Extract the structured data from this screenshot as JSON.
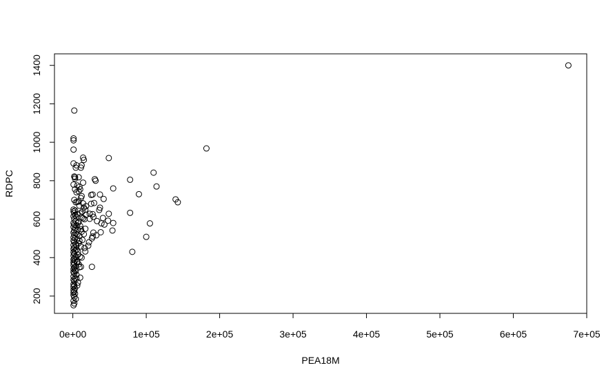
{
  "chart_data": {
    "type": "scatter",
    "title": "",
    "xlabel": "PEA18M",
    "ylabel": "RDPC",
    "xlim": [
      -25000,
      700000
    ],
    "ylim": [
      110,
      1460
    ],
    "xticks": [
      0,
      100000,
      200000,
      300000,
      400000,
      500000,
      600000,
      700000
    ],
    "xtick_labels": [
      "0e+00",
      "1e+05",
      "2e+05",
      "3e+05",
      "4e+05",
      "5e+05",
      "6e+05",
      "7e+05"
    ],
    "yticks": [
      200,
      400,
      600,
      800,
      1000,
      1200,
      1400
    ],
    "ytick_labels": [
      "200",
      "400",
      "600",
      "800",
      "1000",
      "1200",
      "1400"
    ],
    "grid": false,
    "legend": "none",
    "marker": "open-circle",
    "points": [
      [
        675000,
        1400
      ],
      [
        182000,
        968
      ],
      [
        110000,
        842
      ],
      [
        114000,
        770
      ],
      [
        90000,
        730
      ],
      [
        78000,
        805
      ],
      [
        140000,
        703
      ],
      [
        143000,
        688
      ],
      [
        78000,
        633
      ],
      [
        105000,
        578
      ],
      [
        100000,
        508
      ],
      [
        81000,
        430
      ],
      [
        49000,
        918
      ],
      [
        55000,
        760
      ],
      [
        31000,
        800
      ],
      [
        30000,
        808
      ],
      [
        37000,
        728
      ],
      [
        42000,
        705
      ],
      [
        27000,
        728
      ],
      [
        25000,
        726
      ],
      [
        29000,
        684
      ],
      [
        25000,
        680
      ],
      [
        37000,
        660
      ],
      [
        36000,
        648
      ],
      [
        49000,
        628
      ],
      [
        23000,
        628
      ],
      [
        27000,
        626
      ],
      [
        28000,
        612
      ],
      [
        41000,
        606
      ],
      [
        48000,
        592
      ],
      [
        55000,
        580
      ],
      [
        39000,
        578
      ],
      [
        43000,
        572
      ],
      [
        33000,
        590
      ],
      [
        23000,
        602
      ],
      [
        54000,
        541
      ],
      [
        38000,
        532
      ],
      [
        32000,
        516
      ],
      [
        27000,
        510
      ],
      [
        26000,
        500
      ],
      [
        28000,
        530
      ],
      [
        22000,
        480
      ],
      [
        21000,
        462
      ],
      [
        26000,
        352
      ],
      [
        2000,
        1165
      ],
      [
        1000,
        1020
      ],
      [
        1000,
        1010
      ],
      [
        1000,
        962
      ],
      [
        14000,
        920
      ],
      [
        15000,
        908
      ],
      [
        1000,
        890
      ],
      [
        5000,
        880
      ],
      [
        12000,
        880
      ],
      [
        11000,
        868
      ],
      [
        4000,
        868
      ],
      [
        2000,
        822
      ],
      [
        3000,
        818
      ],
      [
        8000,
        818
      ],
      [
        3000,
        810
      ],
      [
        14000,
        790
      ],
      [
        1000,
        780
      ],
      [
        6000,
        775
      ],
      [
        9000,
        768
      ],
      [
        10000,
        755
      ],
      [
        3000,
        755
      ],
      [
        8000,
        745
      ],
      [
        5000,
        740
      ],
      [
        12000,
        720
      ],
      [
        11000,
        710
      ],
      [
        2000,
        700
      ],
      [
        8000,
        692
      ],
      [
        4000,
        688
      ],
      [
        14000,
        682
      ],
      [
        18000,
        668
      ],
      [
        15000,
        660
      ],
      [
        17000,
        650
      ],
      [
        1000,
        650
      ],
      [
        3000,
        645
      ],
      [
        1000,
        640
      ],
      [
        2000,
        632
      ],
      [
        10000,
        630
      ],
      [
        6000,
        625
      ],
      [
        18000,
        622
      ],
      [
        3000,
        620
      ],
      [
        1000,
        615
      ],
      [
        12000,
        610
      ],
      [
        14000,
        605
      ],
      [
        16000,
        600
      ],
      [
        2000,
        600
      ],
      [
        4000,
        590
      ],
      [
        8000,
        585
      ],
      [
        1000,
        580
      ],
      [
        2000,
        572
      ],
      [
        5000,
        568
      ],
      [
        10000,
        565
      ],
      [
        1000,
        560
      ],
      [
        3000,
        552
      ],
      [
        17000,
        550
      ],
      [
        7000,
        545
      ],
      [
        2000,
        540
      ],
      [
        12000,
        535
      ],
      [
        1000,
        530
      ],
      [
        4000,
        525
      ],
      [
        15000,
        522
      ],
      [
        2000,
        518
      ],
      [
        9000,
        512
      ],
      [
        1000,
        505
      ],
      [
        3000,
        500
      ],
      [
        6000,
        495
      ],
      [
        13000,
        492
      ],
      [
        1000,
        488
      ],
      [
        2000,
        480
      ],
      [
        8000,
        475
      ],
      [
        4000,
        470
      ],
      [
        1000,
        465
      ],
      [
        11000,
        458
      ],
      [
        2000,
        452
      ],
      [
        16000,
        450
      ],
      [
        1000,
        445
      ],
      [
        5000,
        440
      ],
      [
        3000,
        435
      ],
      [
        17000,
        432
      ],
      [
        1000,
        428
      ],
      [
        2000,
        420
      ],
      [
        7000,
        415
      ],
      [
        1000,
        410
      ],
      [
        4000,
        405
      ],
      [
        12000,
        400
      ],
      [
        2000,
        395
      ],
      [
        1000,
        390
      ],
      [
        3000,
        385
      ],
      [
        6000,
        380
      ],
      [
        1000,
        375
      ],
      [
        2000,
        370
      ],
      [
        8000,
        365
      ],
      [
        1000,
        360
      ],
      [
        4000,
        355
      ],
      [
        11000,
        352
      ],
      [
        2000,
        348
      ],
      [
        1000,
        340
      ],
      [
        3000,
        335
      ],
      [
        1000,
        325
      ],
      [
        2000,
        318
      ],
      [
        5000,
        310
      ],
      [
        1000,
        302
      ],
      [
        10000,
        296
      ],
      [
        3000,
        292
      ],
      [
        1000,
        285
      ],
      [
        2000,
        278
      ],
      [
        7000,
        270
      ],
      [
        1000,
        262
      ],
      [
        2000,
        255
      ],
      [
        1000,
        248
      ],
      [
        3000,
        240
      ],
      [
        1000,
        232
      ],
      [
        2000,
        225
      ],
      [
        1000,
        218
      ],
      [
        3000,
        212
      ],
      [
        1000,
        205
      ],
      [
        2000,
        195
      ],
      [
        4000,
        185
      ],
      [
        1000,
        175
      ],
      [
        2000,
        162
      ],
      [
        1000,
        152
      ],
      [
        6000,
        690
      ],
      [
        9000,
        670
      ],
      [
        13000,
        640
      ],
      [
        5000,
        612
      ],
      [
        7000,
        580
      ],
      [
        11000,
        548
      ],
      [
        6000,
        520
      ],
      [
        9000,
        488
      ],
      [
        5000,
        460
      ],
      [
        7000,
        430
      ],
      [
        10000,
        405
      ],
      [
        6000,
        375
      ],
      [
        9000,
        350
      ],
      [
        4000,
        330
      ],
      [
        5000,
        290
      ],
      [
        6000,
        255
      ]
    ]
  }
}
